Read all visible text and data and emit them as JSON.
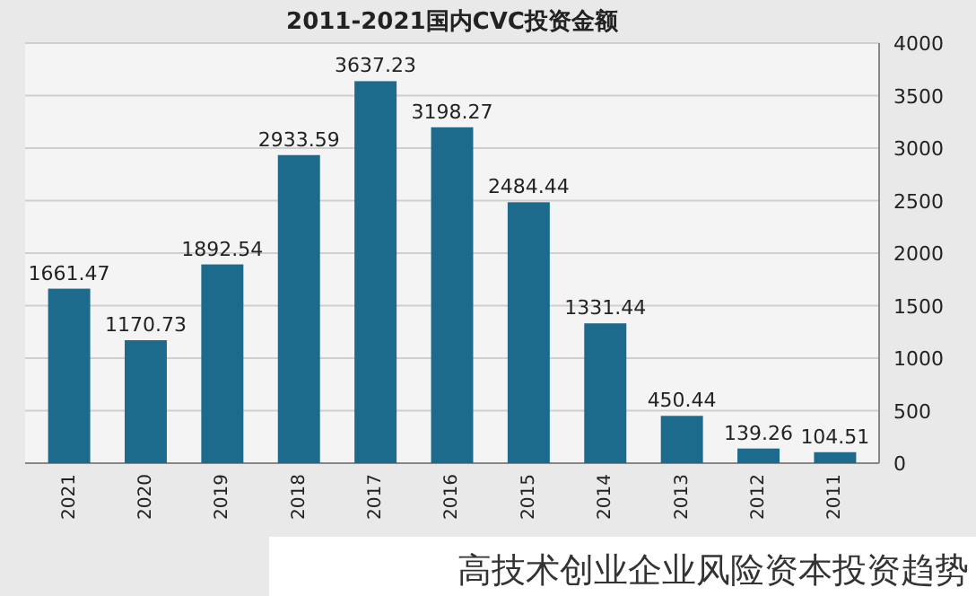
{
  "chart_data": {
    "type": "bar",
    "title": "2011-2021国内CVC投资金额",
    "categories": [
      "2021",
      "2020",
      "2019",
      "2018",
      "2017",
      "2016",
      "2015",
      "2014",
      "2013",
      "2012",
      "2011"
    ],
    "values": [
      1661.47,
      1170.73,
      1892.54,
      2933.59,
      3637.23,
      3198.27,
      2484.44,
      1331.44,
      450.44,
      139.26,
      104.51
    ],
    "color": "#1d6b8c",
    "ylim": [
      0,
      4000
    ],
    "yticks": [
      0,
      500,
      1000,
      1500,
      2000,
      2500,
      3000,
      3500,
      4000
    ],
    "grid": "y",
    "data_labels": true,
    "annotations": [
      "高技术创业企业风险资本投资趋势"
    ]
  }
}
